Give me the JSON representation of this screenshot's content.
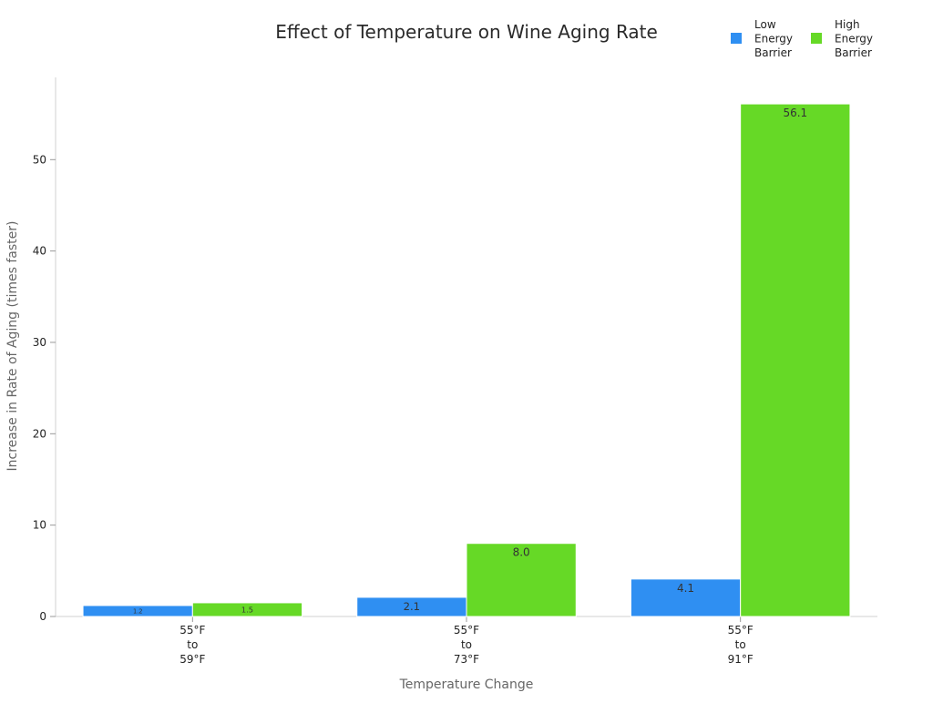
{
  "chart_data": {
    "type": "bar",
    "title": "Effect of Temperature on Wine Aging Rate",
    "xlabel": "Temperature Change",
    "ylabel": "Increase in Rate of Aging (times faster)",
    "categories": [
      [
        "55°F",
        "to",
        "59°F"
      ],
      [
        "55°F",
        "to",
        "73°F"
      ],
      [
        "55°F",
        "to",
        "91°F"
      ]
    ],
    "series": [
      {
        "name": [
          "Low",
          "Energy",
          "Barrier"
        ],
        "color": "#2f8ff2",
        "values": [
          1.2,
          2.1,
          4.1
        ],
        "labels": [
          "1.2",
          "2.1",
          "4.1"
        ]
      },
      {
        "name": [
          "High",
          "Energy",
          "Barrier"
        ],
        "color": "#66d926",
        "values": [
          1.5,
          8.0,
          56.1
        ],
        "labels": [
          "1.5",
          "8.0",
          "56.1"
        ]
      }
    ],
    "ylim": [
      0,
      59
    ],
    "yticks": [
      0,
      10,
      20,
      30,
      40,
      50
    ],
    "grid": false,
    "legend_position": "top-right"
  }
}
